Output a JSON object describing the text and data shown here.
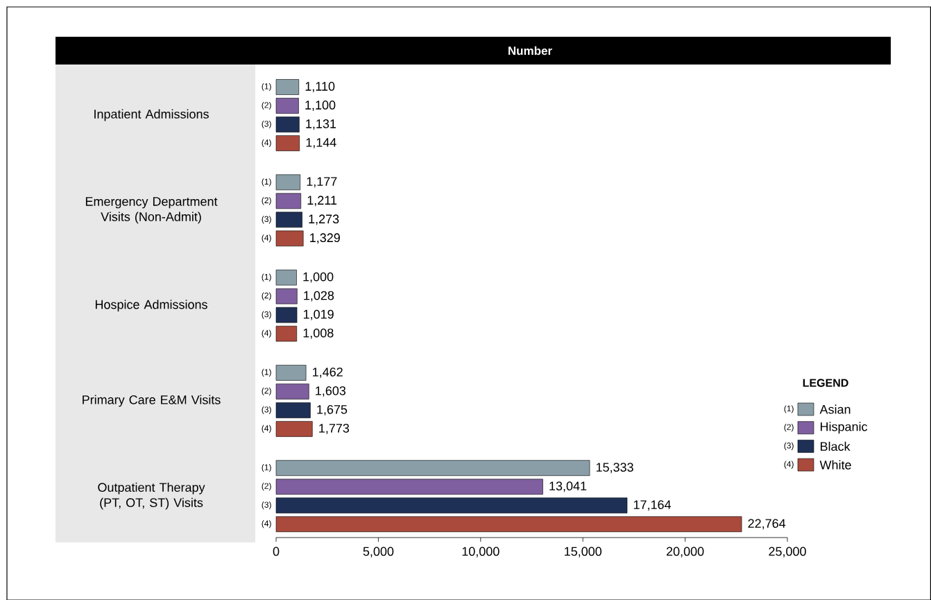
{
  "chart_data": {
    "type": "bar",
    "orientation": "horizontal",
    "title": "Number",
    "legend_title": "LEGEND",
    "legend": "right",
    "categories": [
      "Inpatient Admissions",
      "Emergency Department Visits (Non-Admit)",
      "Hospice Admissions",
      "Primary Care E&M Visits",
      "Outpatient Therapy (PT, OT, ST) Visits"
    ],
    "series": [
      {
        "name": "Asian",
        "color": "#8a9ea7",
        "values": [
          1110,
          1177,
          1000,
          1462,
          15333
        ],
        "value_labels": [
          "1,110",
          "1,177",
          "1,000",
          "1,462",
          "15,333"
        ]
      },
      {
        "name": "Hispanic",
        "color": "#7f5f9f",
        "values": [
          1100,
          1211,
          1028,
          1603,
          13041
        ],
        "value_labels": [
          "1,100",
          "1,211",
          "1,028",
          "1,603",
          "13,041"
        ]
      },
      {
        "name": "Black",
        "color": "#1e3055",
        "values": [
          1131,
          1273,
          1019,
          1675,
          17164
        ],
        "value_labels": [
          "1,131",
          "1,273",
          "1,019",
          "1,675",
          "17,164"
        ]
      },
      {
        "name": "White",
        "color": "#a94a3c",
        "values": [
          1144,
          1329,
          1008,
          1773,
          22764
        ],
        "value_labels": [
          "1,144",
          "1,329",
          "1,008",
          "1,773",
          "22,764"
        ]
      }
    ],
    "annotations": [
      "(1)",
      "(2)",
      "(3)",
      "(4)"
    ],
    "xlim": [
      0,
      25000
    ],
    "xticks": [
      0,
      {
        "value": 5000,
        "label": "5,000"
      },
      {
        "value": 10000,
        "label": "10,000"
      },
      {
        "value": 15000,
        "label": "15,000"
      },
      {
        "value": 20000,
        "label": "20,000"
      },
      {
        "value": 25000,
        "label": "25,000"
      }
    ]
  }
}
